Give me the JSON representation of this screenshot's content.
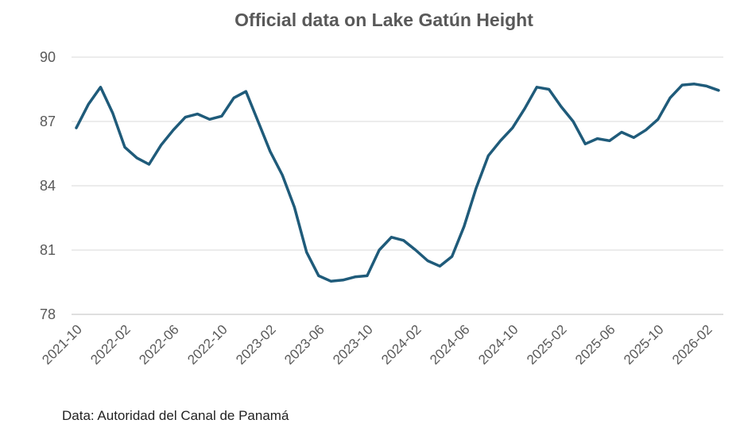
{
  "chart_data": {
    "type": "line",
    "title": "Official data on Lake Gatún Height",
    "xlabel": "",
    "ylabel": "",
    "ylim": [
      78,
      90
    ],
    "y_ticks": [
      "90",
      "87",
      "84",
      "81",
      "78"
    ],
    "x_tick_labels": [
      "2021-10",
      "2022-02",
      "2022-06",
      "2022-10",
      "2023-02",
      "2023-06",
      "2023-10",
      "2024-02",
      "2024-06",
      "2024-10",
      "2025-02",
      "2025-06",
      "2025-10",
      "2026-02"
    ],
    "grid": true,
    "legend": "none",
    "line_color": "#1f5b7a",
    "series": [
      {
        "x": [
          "2021-10",
          "2021-11",
          "2021-12",
          "2022-01",
          "2022-02",
          "2022-03",
          "2022-04",
          "2022-05",
          "2022-06",
          "2022-07",
          "2022-08",
          "2022-09",
          "2022-10",
          "2022-11",
          "2022-12",
          "2023-01",
          "2023-02",
          "2023-03",
          "2023-04",
          "2023-05",
          "2023-06",
          "2023-07",
          "2023-08",
          "2023-09",
          "2023-10",
          "2023-11",
          "2023-12",
          "2024-01",
          "2024-02",
          "2024-03",
          "2024-04",
          "2024-05",
          "2024-06",
          "2024-07",
          "2024-08",
          "2024-09",
          "2024-10",
          "2024-11",
          "2024-12",
          "2025-01",
          "2025-02",
          "2025-03",
          "2025-04",
          "2025-05",
          "2025-06",
          "2025-07",
          "2025-08",
          "2025-09",
          "2025-10",
          "2025-11",
          "2025-12",
          "2026-01",
          "2026-02",
          "2026-03"
        ],
        "values": [
          86.7,
          87.8,
          88.6,
          87.4,
          85.8,
          85.3,
          85.0,
          85.9,
          86.6,
          87.2,
          87.35,
          87.1,
          87.25,
          88.1,
          88.4,
          87.0,
          85.6,
          84.5,
          83.0,
          80.9,
          79.8,
          79.55,
          79.6,
          79.75,
          79.8,
          81.0,
          81.6,
          81.45,
          81.0,
          80.5,
          80.25,
          80.7,
          82.1,
          83.9,
          85.4,
          86.1,
          86.7,
          87.6,
          88.6,
          88.5,
          87.7,
          87.0,
          85.95,
          86.2,
          86.1,
          86.5,
          86.25,
          86.6,
          87.1,
          88.1,
          88.7,
          88.75,
          88.65,
          88.45
        ]
      }
    ]
  },
  "source_note": "Data: Autoridad del Canal de Panamá"
}
